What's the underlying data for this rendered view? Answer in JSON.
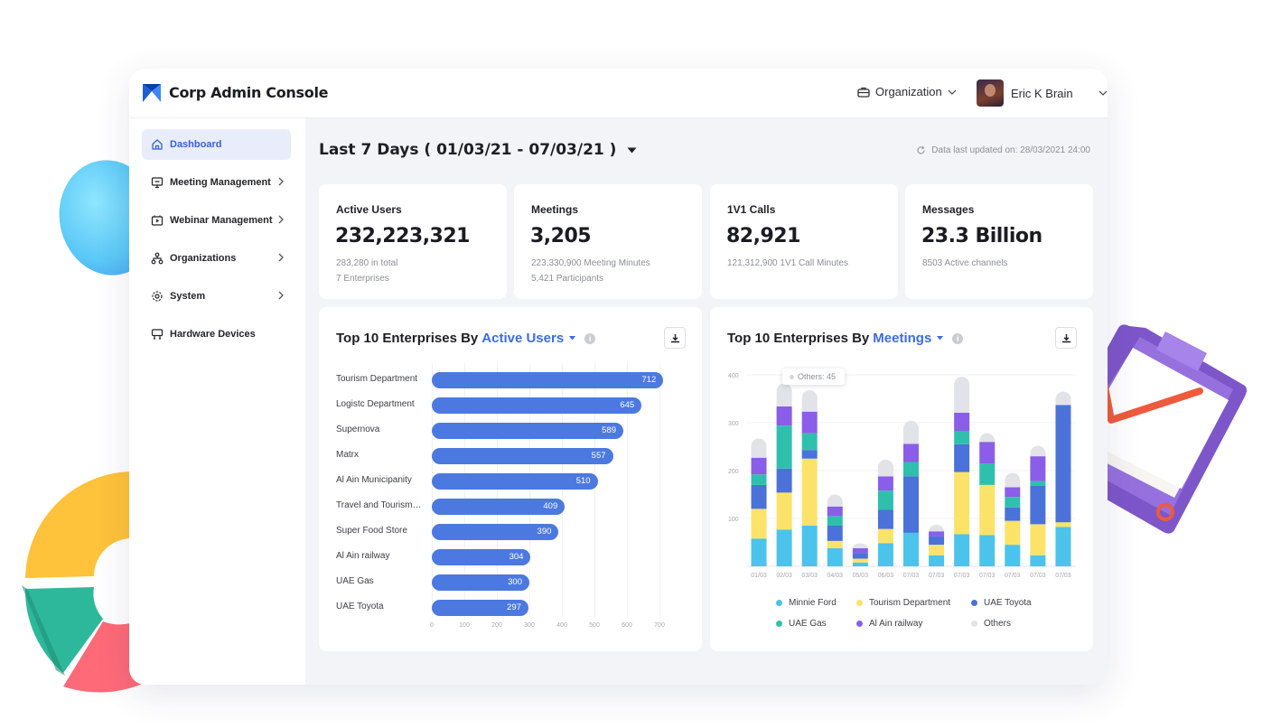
{
  "app": {
    "title": "Corp Admin Console"
  },
  "header": {
    "org_label": "Organization",
    "user_name": "Eric K Brain"
  },
  "sidebar": {
    "items": [
      {
        "label": "Dashboard",
        "icon": "home-icon",
        "active": true
      },
      {
        "label": "Meeting Management",
        "icon": "monitor-icon"
      },
      {
        "label": "Webinar Management",
        "icon": "video-icon"
      },
      {
        "label": "Organizations",
        "icon": "org-chart-icon"
      },
      {
        "label": "System",
        "icon": "gear-icon"
      },
      {
        "label": "Hardware Devices",
        "icon": "device-icon"
      }
    ]
  },
  "range": {
    "label": "Last 7 Days ( 01/03/21 - 07/03/21 )"
  },
  "updated": {
    "text": "Data last updated on: 28/03/2021  24:00"
  },
  "stats": [
    {
      "label": "Active Users",
      "value": "232,223,321",
      "sub1": "283,280 in total",
      "sub2": "7 Enterprises"
    },
    {
      "label": "Meetings",
      "value": "3,205",
      "sub1": "223,330,900 Meeting Minutes",
      "sub2": "5,421 Participants"
    },
    {
      "label": "1V1 Calls",
      "value": "82,921",
      "sub1": "121,312,900 1V1 Call Minutes"
    },
    {
      "label": "Messages",
      "value": "23.3 Billion",
      "sub1": "8503 Active channels"
    }
  ],
  "charts": {
    "users": {
      "prefix": "Top 10 Enterprises By",
      "metric": "Active Users"
    },
    "meetings": {
      "prefix": "Top 10 Enterprises By",
      "metric": "Meetings",
      "tooltip": "Others: 45"
    }
  },
  "colors": {
    "accent": "#3d6be6",
    "bar": "#4c79e0",
    "minnie": "#4cc3ea",
    "tourism": "#fbe36a",
    "toyota": "#4a72d8",
    "gas": "#2fc0ad",
    "railway": "#8a5ee8",
    "others": "#e1e3e8"
  },
  "chart_data": [
    {
      "type": "bar",
      "orientation": "horizontal",
      "categories": [
        "Tourism Department",
        "Logistc Department",
        "Supernova",
        "Matrx",
        "Al Ain Municipanity",
        "Travel and Tourism…",
        "Super Food Store",
        "Al Ain railway",
        "UAE Gas",
        "UAE Toyota"
      ],
      "values": [
        712,
        645,
        589,
        557,
        510,
        409,
        390,
        304,
        300,
        297
      ],
      "xticks": [
        "0",
        "100",
        "200",
        "300",
        "400",
        "500",
        "600",
        "700"
      ],
      "xlim": [
        0,
        700
      ]
    },
    {
      "type": "bar",
      "stacked": true,
      "categories": [
        "01/03",
        "02/03",
        "03/03",
        "04/03",
        "05/03",
        "06/03",
        "07/03",
        "07/03",
        "07/03",
        "07/03",
        "07/03",
        "07/03",
        "07/03"
      ],
      "yticks": [
        "400",
        "300",
        "200",
        "100"
      ],
      "ylim": [
        0,
        400
      ],
      "legend_position": "bottom",
      "series": [
        {
          "name": "Minnie Ford",
          "color": "#4cc3ea",
          "values": [
            58,
            77,
            85,
            38,
            8,
            48,
            70,
            23,
            67,
            65,
            45,
            23,
            82
          ]
        },
        {
          "name": "Tourism Department",
          "color": "#fbe36a",
          "values": [
            62,
            77,
            140,
            15,
            8,
            30,
            0,
            22,
            130,
            105,
            50,
            65,
            10
          ]
        },
        {
          "name": "UAE Toyota",
          "color": "#4a72d8",
          "values": [
            50,
            50,
            18,
            32,
            12,
            40,
            118,
            18,
            58,
            0,
            28,
            80,
            245
          ]
        },
        {
          "name": "UAE Gas",
          "color": "#2fc0ad",
          "values": [
            22,
            90,
            35,
            20,
            0,
            40,
            30,
            0,
            28,
            45,
            22,
            10,
            0
          ]
        },
        {
          "name": "Al Ain railway",
          "color": "#8a5ee8",
          "values": [
            35,
            40,
            45,
            20,
            10,
            30,
            38,
            10,
            38,
            45,
            20,
            52,
            0
          ]
        },
        {
          "name": "Others",
          "color": "#e1e3e8",
          "values": [
            40,
            48,
            45,
            25,
            10,
            35,
            48,
            14,
            75,
            18,
            30,
            22,
            28
          ]
        }
      ]
    }
  ]
}
